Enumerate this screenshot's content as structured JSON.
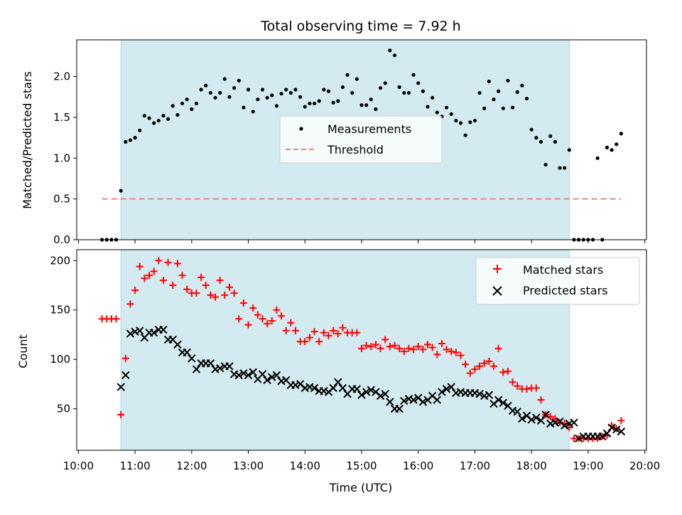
{
  "chart_data": [
    {
      "type": "scatter",
      "title": "Total observing time = 7.92 h",
      "xlabel": "",
      "ylabel": "Matched/Predicted stars",
      "ylim": [
        0,
        2.45
      ],
      "xlim_hours": [
        9.97,
        20.03
      ],
      "yticks": [
        "0.0",
        "0.5",
        "1.0",
        "1.5",
        "2.0"
      ],
      "ytick_values": [
        0,
        0.5,
        1.0,
        1.5,
        2.0
      ],
      "shaded_region": {
        "start": "10:45",
        "end": "18:40",
        "color": "#d3eaf0"
      },
      "legend": {
        "position": "center",
        "entries": [
          "Measurements",
          "Threshold"
        ]
      },
      "series": [
        {
          "name": "Measurements",
          "marker": "dot",
          "color": "#000000",
          "x": [
            "10:25",
            "10:30",
            "10:35",
            "10:40",
            "10:45",
            "10:50",
            "10:55",
            "11:00",
            "11:05",
            "11:10",
            "11:15",
            "11:20",
            "11:25",
            "11:30",
            "11:35",
            "11:40",
            "11:45",
            "11:50",
            "11:55",
            "12:00",
            "12:05",
            "12:10",
            "12:15",
            "12:20",
            "12:25",
            "12:30",
            "12:35",
            "12:40",
            "12:45",
            "12:50",
            "12:55",
            "13:00",
            "13:05",
            "13:10",
            "13:15",
            "13:20",
            "13:25",
            "13:30",
            "13:35",
            "13:40",
            "13:45",
            "13:50",
            "13:55",
            "14:00",
            "14:05",
            "14:10",
            "14:15",
            "14:20",
            "14:25",
            "14:30",
            "14:35",
            "14:40",
            "14:45",
            "14:50",
            "14:55",
            "15:00",
            "15:05",
            "15:10",
            "15:15",
            "15:20",
            "15:25",
            "15:30",
            "15:35",
            "15:40",
            "15:45",
            "15:50",
            "15:55",
            "16:00",
            "16:05",
            "16:10",
            "16:15",
            "16:20",
            "16:25",
            "16:30",
            "16:35",
            "16:40",
            "16:45",
            "16:50",
            "16:55",
            "17:00",
            "17:05",
            "17:10",
            "17:15",
            "17:20",
            "17:25",
            "17:30",
            "17:35",
            "17:40",
            "17:45",
            "17:50",
            "17:55",
            "18:00",
            "18:05",
            "18:10",
            "18:15",
            "18:20",
            "18:25",
            "18:30",
            "18:35",
            "18:40",
            "18:45",
            "18:50",
            "18:55",
            "19:00",
            "19:05",
            "19:10",
            "19:15",
            "19:20",
            "19:25",
            "19:30",
            "19:35"
          ],
          "y": [
            0.0,
            0.0,
            0.0,
            0.0,
            0.6,
            1.2,
            1.22,
            1.25,
            1.34,
            1.52,
            1.49,
            1.43,
            1.46,
            1.52,
            1.48,
            1.64,
            1.53,
            1.67,
            1.72,
            1.6,
            1.67,
            1.84,
            1.89,
            1.8,
            1.74,
            1.8,
            1.97,
            1.75,
            1.86,
            1.95,
            1.62,
            1.84,
            1.57,
            1.72,
            1.84,
            1.74,
            1.77,
            1.64,
            1.79,
            1.84,
            1.8,
            1.84,
            1.75,
            1.63,
            1.67,
            1.67,
            1.7,
            1.84,
            1.82,
            1.68,
            1.7,
            1.87,
            2.02,
            1.8,
            1.97,
            1.65,
            1.65,
            1.72,
            1.6,
            1.86,
            1.92,
            2.32,
            2.26,
            1.87,
            1.8,
            1.8,
            2.02,
            1.92,
            1.82,
            1.63,
            1.74,
            1.56,
            1.51,
            1.62,
            1.54,
            1.46,
            1.43,
            1.28,
            1.44,
            1.46,
            1.8,
            1.61,
            1.94,
            1.72,
            1.82,
            1.61,
            1.95,
            1.62,
            1.81,
            1.89,
            1.73,
            1.35,
            1.25,
            1.2,
            0.92,
            1.27,
            1.2,
            0.88,
            0.88,
            1.1,
            0.0,
            0.0,
            0.0,
            0.0,
            0.0,
            1.0,
            0.0,
            1.13,
            1.1,
            1.17,
            1.3
          ]
        },
        {
          "name": "Threshold",
          "style": "dashed",
          "color": "#f08080",
          "x": [
            "10:25",
            "19:35"
          ],
          "y": [
            0.5,
            0.5
          ]
        }
      ]
    },
    {
      "type": "scatter",
      "title": "",
      "xlabel": "Time (UTC)",
      "ylabel": "Count",
      "ylim": [
        8,
        211
      ],
      "xlim_hours": [
        9.97,
        20.03
      ],
      "yticks": [
        "50",
        "100",
        "150",
        "200"
      ],
      "ytick_values": [
        50,
        100,
        150,
        200
      ],
      "xticks": [
        "10:00",
        "11:00",
        "12:00",
        "13:00",
        "14:00",
        "15:00",
        "16:00",
        "17:00",
        "18:00",
        "19:00",
        "20:00"
      ],
      "shaded_region": {
        "start": "10:45",
        "end": "18:40",
        "color": "#d3eaf0"
      },
      "legend": {
        "position": "top-right",
        "entries": [
          "Matched stars",
          "Predicted stars"
        ]
      },
      "series": [
        {
          "name": "Matched stars",
          "marker": "+",
          "color": "#ff0000",
          "x": [
            "10:25",
            "10:30",
            "10:35",
            "10:40",
            "10:45",
            "10:50",
            "10:55",
            "11:00",
            "11:05",
            "11:10",
            "11:15",
            "11:20",
            "11:25",
            "11:30",
            "11:35",
            "11:40",
            "11:45",
            "11:50",
            "11:55",
            "12:00",
            "12:05",
            "12:10",
            "12:15",
            "12:20",
            "12:25",
            "12:30",
            "12:35",
            "12:40",
            "12:45",
            "12:50",
            "12:55",
            "13:00",
            "13:05",
            "13:10",
            "13:15",
            "13:20",
            "13:25",
            "13:30",
            "13:35",
            "13:40",
            "13:45",
            "13:50",
            "13:55",
            "14:00",
            "14:05",
            "14:10",
            "14:15",
            "14:20",
            "14:25",
            "14:30",
            "14:35",
            "14:40",
            "14:45",
            "14:50",
            "14:55",
            "15:00",
            "15:05",
            "15:10",
            "15:15",
            "15:20",
            "15:25",
            "15:30",
            "15:35",
            "15:40",
            "15:45",
            "15:50",
            "15:55",
            "16:00",
            "16:05",
            "16:10",
            "16:15",
            "16:20",
            "16:25",
            "16:30",
            "16:35",
            "16:40",
            "16:45",
            "16:50",
            "16:55",
            "17:00",
            "17:05",
            "17:10",
            "17:15",
            "17:20",
            "17:25",
            "17:30",
            "17:35",
            "17:40",
            "17:45",
            "17:50",
            "17:55",
            "18:00",
            "18:05",
            "18:10",
            "18:15",
            "18:20",
            "18:25",
            "18:30",
            "18:35",
            "18:40",
            "18:45",
            "18:50",
            "18:55",
            "19:00",
            "19:05",
            "19:10",
            "19:15",
            "19:20",
            "19:25",
            "19:30",
            "19:35"
          ],
          "y": [
            141,
            141,
            141,
            141,
            44,
            101,
            156,
            170,
            194,
            182,
            185,
            189,
            200,
            180,
            198,
            175,
            197,
            185,
            171,
            167,
            167,
            183,
            175,
            165,
            163,
            180,
            165,
            173,
            167,
            141,
            157,
            135,
            152,
            145,
            141,
            136,
            139,
            150,
            144,
            129,
            137,
            129,
            118,
            118,
            122,
            128,
            118,
            127,
            124,
            129,
            126,
            132,
            127,
            127,
            127,
            111,
            114,
            113,
            115,
            111,
            120,
            113,
            114,
            111,
            108,
            111,
            110,
            113,
            110,
            115,
            112,
            105,
            116,
            110,
            108,
            107,
            104,
            95,
            86,
            90,
            93,
            96,
            98,
            93,
            111,
            87,
            88,
            77,
            73,
            70,
            70,
            71,
            71,
            59,
            44,
            42,
            40,
            36,
            35,
            31,
            20,
            20,
            20,
            20,
            20,
            20,
            22,
            23,
            33,
            30,
            38
          ]
        },
        {
          "name": "Predicted stars",
          "marker": "x",
          "color": "#000000",
          "x": [
            "10:45",
            "10:50",
            "10:55",
            "11:00",
            "11:05",
            "11:10",
            "11:15",
            "11:20",
            "11:25",
            "11:30",
            "11:35",
            "11:40",
            "11:45",
            "11:50",
            "11:55",
            "12:00",
            "12:05",
            "12:10",
            "12:15",
            "12:20",
            "12:25",
            "12:30",
            "12:35",
            "12:40",
            "12:45",
            "12:50",
            "12:55",
            "13:00",
            "13:05",
            "13:10",
            "13:15",
            "13:20",
            "13:25",
            "13:30",
            "13:35",
            "13:40",
            "13:45",
            "13:50",
            "13:55",
            "14:00",
            "14:05",
            "14:10",
            "14:15",
            "14:20",
            "14:25",
            "14:30",
            "14:35",
            "14:40",
            "14:45",
            "14:50",
            "14:55",
            "15:00",
            "15:05",
            "15:10",
            "15:15",
            "15:20",
            "15:25",
            "15:30",
            "15:35",
            "15:40",
            "15:45",
            "15:50",
            "15:55",
            "16:00",
            "16:05",
            "16:10",
            "16:15",
            "16:20",
            "16:25",
            "16:30",
            "16:35",
            "16:40",
            "16:45",
            "16:50",
            "16:55",
            "17:00",
            "17:05",
            "17:10",
            "17:15",
            "17:20",
            "17:25",
            "17:30",
            "17:35",
            "17:40",
            "17:45",
            "17:50",
            "17:55",
            "18:00",
            "18:05",
            "18:10",
            "18:15",
            "18:20",
            "18:25",
            "18:30",
            "18:35",
            "18:40",
            "18:45",
            "18:50",
            "18:55",
            "19:00",
            "19:05",
            "19:10",
            "19:15",
            "19:20",
            "19:25",
            "19:30",
            "19:35"
          ],
          "y": [
            72,
            84,
            126,
            128,
            129,
            122,
            127,
            127,
            130,
            130,
            120,
            120,
            115,
            107,
            107,
            101,
            90,
            96,
            96,
            96,
            90,
            91,
            93,
            93,
            85,
            84,
            86,
            84,
            87,
            80,
            85,
            79,
            82,
            84,
            78,
            79,
            74,
            74,
            75,
            71,
            72,
            71,
            68,
            68,
            67,
            71,
            77,
            71,
            65,
            70,
            70,
            64,
            67,
            69,
            67,
            63,
            65,
            57,
            50,
            50,
            58,
            60,
            59,
            61,
            57,
            59,
            63,
            59,
            67,
            70,
            72,
            66,
            67,
            66,
            66,
            66,
            65,
            63,
            64,
            55,
            59,
            56,
            53,
            48,
            47,
            40,
            43,
            39,
            41,
            38,
            44,
            35,
            36,
            37,
            33,
            35,
            36,
            20,
            22,
            22,
            22,
            22,
            22,
            25,
            31,
            29,
            27
          ]
        }
      ]
    }
  ]
}
